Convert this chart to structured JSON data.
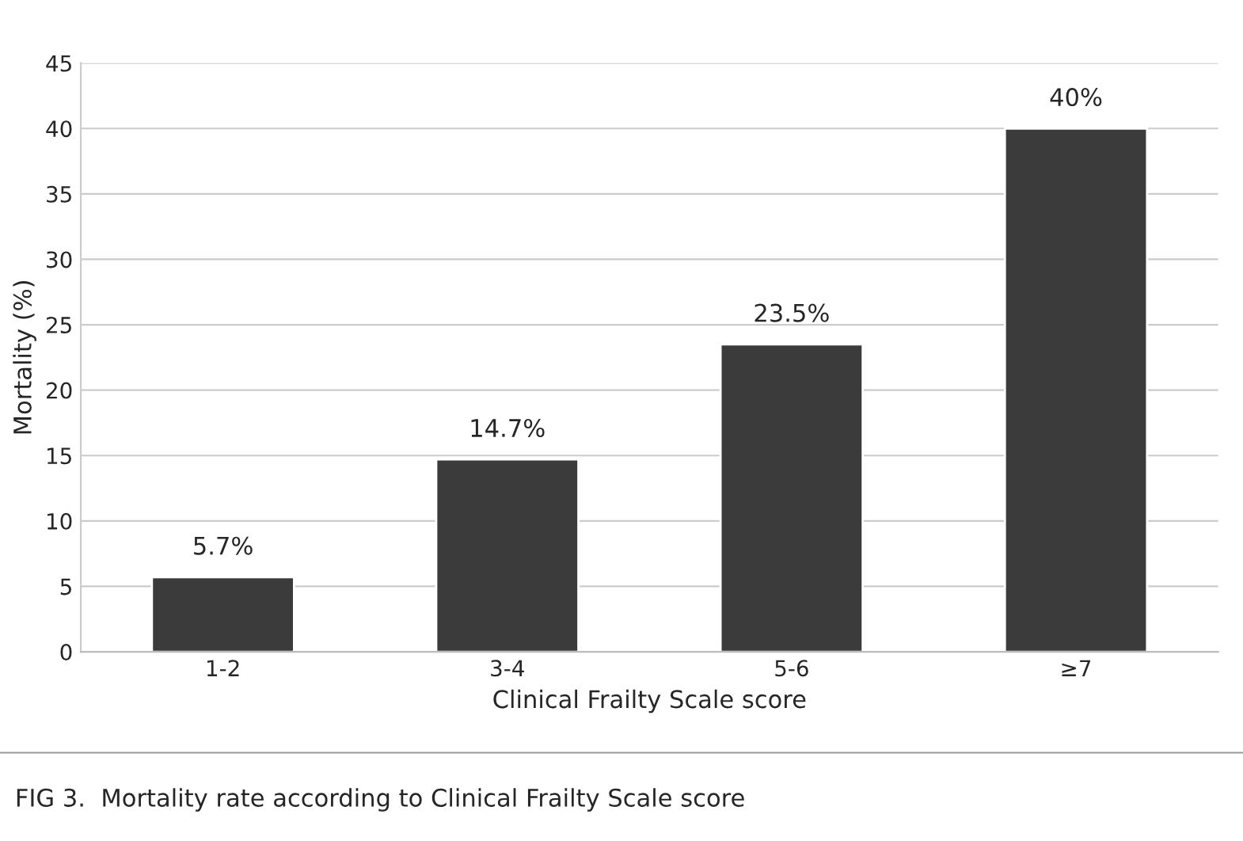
{
  "chart_data": {
    "type": "bar",
    "categories": [
      "1-2",
      "3-4",
      "5-6",
      "≥7"
    ],
    "values": [
      5.7,
      14.7,
      23.5,
      40
    ],
    "value_labels": [
      "5.7%",
      "14.7%",
      "23.5%",
      "40%"
    ],
    "color": "#3b3b3b",
    "xlabel": "Clinical Frailty Scale score",
    "ylabel": "Mortality (%)",
    "ylim": [
      0,
      45
    ],
    "yticks": [
      0,
      5,
      10,
      15,
      20,
      25,
      30,
      35,
      40,
      45
    ],
    "grid": "y",
    "legend": false,
    "annotations": [
      "FIG 3.  Mortality rate according to Clinical Frailty Scale score"
    ]
  }
}
